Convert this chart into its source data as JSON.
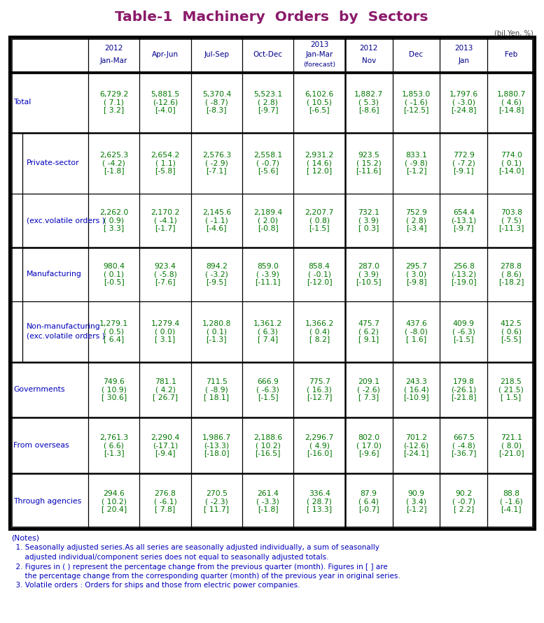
{
  "title": "Table-1  Machinery  Orders  by  Sectors",
  "title_color": "#8B1A6B",
  "unit_text": "(bil.Yen, %)",
  "col_headers": [
    [
      "2012",
      "Jan-Mar",
      ""
    ],
    [
      "",
      "Apr-Jun",
      ""
    ],
    [
      "",
      "Jul-Sep",
      ""
    ],
    [
      "",
      "Oct-Dec",
      ""
    ],
    [
      "2013",
      "Jan-Mar",
      "(forecast)"
    ],
    [
      "2012",
      "Nov",
      ""
    ],
    [
      "",
      "Dec",
      ""
    ],
    [
      "2013",
      "Jan",
      ""
    ],
    [
      "",
      "Feb",
      ""
    ]
  ],
  "row_labels": [
    "Total",
    "Private-sector",
    "(exc.volatile orders )",
    "Manufacturing",
    "Non-manufacturing\n(exc.volatile orders )",
    "Governments",
    "From overseas",
    "Through agencies"
  ],
  "label_color": "#0000BB",
  "data_color": "#007700",
  "header_color": "#00008B",
  "data": [
    [
      [
        "6,729.2",
        "( 7.1)",
        "[ 3.2]"
      ],
      [
        "5,881.5",
        "(-12.6)",
        "[-4.0]"
      ],
      [
        "5,370.4",
        "( -8.7)",
        "[-8.3]"
      ],
      [
        "5,523.1",
        "( 2.8)",
        "[-9.7]"
      ],
      [
        "6,102.6",
        "( 10.5)",
        "[-6.5]"
      ],
      [
        "1,882.7",
        "( 5.3)",
        "[-8.6]"
      ],
      [
        "1,853.0",
        "( -1.6)",
        "[-12.5]"
      ],
      [
        "1,797.6",
        "( -3.0)",
        "[-24.8]"
      ],
      [
        "1,880.7",
        "( 4.6)",
        "[-14.8]"
      ]
    ],
    [
      [
        "2,625.3",
        "( -4.2)",
        "[-1.8]"
      ],
      [
        "2,654.2",
        "( 1.1)",
        "[-5.8]"
      ],
      [
        "2,576.3",
        "( -2.9)",
        "[-7.1]"
      ],
      [
        "2,558.1",
        "( -0.7)",
        "[-5.6]"
      ],
      [
        "2,931.2",
        "( 14.6)",
        "[ 12.0]"
      ],
      [
        "923.5",
        "( 15.2)",
        "[-11.6]"
      ],
      [
        "833.1",
        "( -9.8)",
        "[-1.2]"
      ],
      [
        "772.9",
        "( -7.2)",
        "[-9.1]"
      ],
      [
        "774.0",
        "( 0.1)",
        "[-14.0]"
      ]
    ],
    [
      [
        "2,262.0",
        "( 0.9)",
        "[ 3.3]"
      ],
      [
        "2,170.2",
        "( -4.1)",
        "[-1.7]"
      ],
      [
        "2,145.6",
        "( -1.1)",
        "[-4.6]"
      ],
      [
        "2,189.4",
        "( 2.0)",
        "[-0.8]"
      ],
      [
        "2,207.7",
        "( 0.8)",
        "[-1.5]"
      ],
      [
        "732.1",
        "( 3.9)",
        "[ 0.3]"
      ],
      [
        "752.9",
        "( 2.8)",
        "[-3.4]"
      ],
      [
        "654.4",
        "(-13.1)",
        "[-9.7]"
      ],
      [
        "703.8",
        "( 7.5)",
        "[-11.3]"
      ]
    ],
    [
      [
        "980.4",
        "( 0.1)",
        "[-0.5]"
      ],
      [
        "923.4",
        "( -5.8)",
        "[-7.6]"
      ],
      [
        "894.2",
        "( -3.2)",
        "[-9.5]"
      ],
      [
        "859.0",
        "( -3.9)",
        "[-11.1]"
      ],
      [
        "858.4",
        "( -0.1)",
        "[-12.0]"
      ],
      [
        "287.0",
        "( 3.9)",
        "[-10.5]"
      ],
      [
        "295.7",
        "( 3.0)",
        "[-9.8]"
      ],
      [
        "256.8",
        "(-13.2)",
        "[-19.0]"
      ],
      [
        "278.8",
        "( 8.6)",
        "[-18.2]"
      ]
    ],
    [
      [
        "1,279.1",
        "( 0.5)",
        "[ 6.4]"
      ],
      [
        "1,279.4",
        "( 0.0)",
        "[ 3.1]"
      ],
      [
        "1,280.8",
        "( 0.1)",
        "[-1.3]"
      ],
      [
        "1,361.2",
        "( 6.3)",
        "[ 7.4]"
      ],
      [
        "1,366.2",
        "( 0.4)",
        "[ 8.2]"
      ],
      [
        "475.7",
        "( 6.2)",
        "[ 9.1]"
      ],
      [
        "437.6",
        "( -8.0)",
        "[ 1.6]"
      ],
      [
        "409.9",
        "( -6.3)",
        "[-1.5]"
      ],
      [
        "412.5",
        "( 0.6)",
        "[-5.5]"
      ]
    ],
    [
      [
        "749.6",
        "( 10.9)",
        "[ 30.6]"
      ],
      [
        "781.1",
        "( 4.2)",
        "[ 26.7]"
      ],
      [
        "711.5",
        "( -8.9)",
        "[ 18.1]"
      ],
      [
        "666.9",
        "( -6.3)",
        "[-1.5]"
      ],
      [
        "775.7",
        "( 16.3)",
        "[-12.7]"
      ],
      [
        "209.1",
        "( -2.6)",
        "[ 7.3]"
      ],
      [
        "243.3",
        "( 16.4)",
        "[-10.9]"
      ],
      [
        "179.8",
        "(-26.1)",
        "[-21.8]"
      ],
      [
        "218.5",
        "( 21.5)",
        "[ 1.5]"
      ]
    ],
    [
      [
        "2,761.3",
        "( 6.6)",
        "[-1.3]"
      ],
      [
        "2,290.4",
        "(-17.1)",
        "[-9.4]"
      ],
      [
        "1,986.7",
        "(-13.3)",
        "[-18.0]"
      ],
      [
        "2,188.6",
        "( 10.2)",
        "[-16.5]"
      ],
      [
        "2,296.7",
        "( 4.9)",
        "[-16.0]"
      ],
      [
        "802.0",
        "( 17.0)",
        "[-9.6]"
      ],
      [
        "701.2",
        "(-12.6)",
        "[-24.1]"
      ],
      [
        "667.5",
        "( -4.8)",
        "[-36.7]"
      ],
      [
        "721.1",
        "( 8.0)",
        "[-21.0]"
      ]
    ],
    [
      [
        "294.6",
        "( 10.2)",
        "[ 20.4]"
      ],
      [
        "276.8",
        "( -6.1)",
        "[ 7.8]"
      ],
      [
        "270.5",
        "( -2.3)",
        "[ 11.7]"
      ],
      [
        "261.4",
        "( -3.3)",
        "[-1.8]"
      ],
      [
        "336.4",
        "( 28.7)",
        "[ 13.3]"
      ],
      [
        "87.9",
        "( 6.4)",
        "[-0.7]"
      ],
      [
        "90.9",
        "( 3.4)",
        "[-1.2]"
      ],
      [
        "90.2",
        "( -0.7)",
        "[ 2.2]"
      ],
      [
        "88.8",
        "( -1.6)",
        "[-4.1]"
      ]
    ]
  ],
  "notes_lines": [
    "(Notes)",
    "  1. Seasonally adjusted series.As all series are seasonally adjusted individually, a sum of seasonally",
    "      adjusted individual/component series does not equal to seasonally adjusted totals.",
    "  2. Figures in ( ) represent the percentage change from the previous quarter (month). Figures in [ ] are",
    "      the percentage change from the corresponding quarter (month) of the previous year in original series.",
    "  3. Volatile orders : Orders for ships and those from electric power companies."
  ],
  "notes_color": "#0000BB",
  "indented_rows": [
    1,
    2,
    3,
    4
  ],
  "thick_dividers_after": [
    0,
    2,
    4,
    5,
    6,
    7
  ]
}
